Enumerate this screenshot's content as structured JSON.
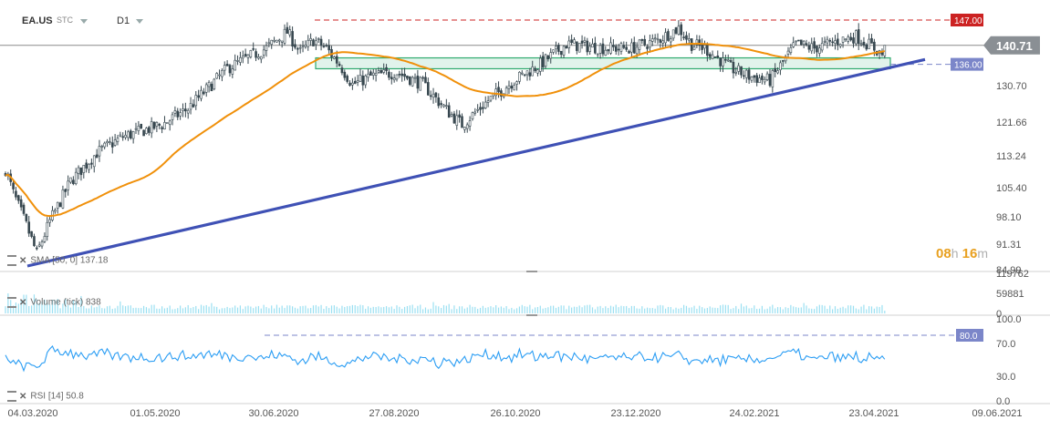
{
  "header": {
    "symbol": "EA.US",
    "sub": "STC",
    "timeframe": "D1"
  },
  "timer": {
    "hours": "08",
    "h_unit": "h",
    "minutes": "16",
    "m_unit": "m"
  },
  "labels": {
    "sma": "SMA [50, 0] 137.18",
    "volume": "Volume (tick) 838",
    "rsi": "RSI [14] 50.8"
  },
  "chart_data": [
    {
      "type": "candlestick",
      "title": "EA.US",
      "timeframe": "D1",
      "y_ticks": [
        "84.99",
        "91.31",
        "98.10",
        "105.40",
        "113.24",
        "121.66",
        "130.70",
        "136.00",
        "140.71",
        "147.00"
      ],
      "ylim": [
        84.99,
        147.0
      ],
      "x_ticks": [
        "04.03.2020",
        "01.05.2020",
        "30.06.2020",
        "27.08.2020",
        "26.10.2020",
        "23.12.2020",
        "24.02.2021",
        "23.04.2021",
        "09.06.2021"
      ],
      "last_price": 140.71,
      "resistance": 147.0,
      "support": 136.0,
      "color_up": "#ffffff",
      "color_down": "#37474f",
      "sma_color": "#f0900a",
      "trendline_color": "#3f51b5",
      "zone_color": "#2eaa6e",
      "resistance_color": "#cc2222",
      "support_label_color": "#7b86c9",
      "close_anchors": [
        [
          0,
          110
        ],
        [
          3,
          104
        ],
        [
          8,
          96
        ],
        [
          12,
          89
        ],
        [
          17,
          97
        ],
        [
          25,
          107
        ],
        [
          35,
          114
        ],
        [
          45,
          118
        ],
        [
          60,
          121
        ],
        [
          70,
          125
        ],
        [
          85,
          135
        ],
        [
          100,
          140
        ],
        [
          108,
          144
        ],
        [
          113,
          139
        ],
        [
          118,
          142
        ],
        [
          123,
          140
        ],
        [
          128,
          136
        ],
        [
          133,
          131
        ],
        [
          140,
          133
        ],
        [
          150,
          134
        ],
        [
          160,
          131
        ],
        [
          170,
          124
        ],
        [
          175,
          121
        ],
        [
          185,
          127
        ],
        [
          195,
          132
        ],
        [
          205,
          136
        ],
        [
          215,
          141
        ],
        [
          230,
          140
        ],
        [
          240,
          140
        ],
        [
          250,
          142
        ],
        [
          258,
          145
        ],
        [
          263,
          141
        ],
        [
          268,
          140
        ],
        [
          278,
          135
        ],
        [
          285,
          133
        ],
        [
          293,
          132
        ],
        [
          303,
          141
        ],
        [
          310,
          140
        ],
        [
          320,
          142
        ],
        [
          326,
          143
        ],
        [
          333,
          140
        ],
        [
          337,
          138
        ]
      ]
    },
    {
      "type": "bar",
      "title": "Volume (tick)",
      "last_value": 838,
      "y_ticks": [
        "0",
        "59881",
        "119762"
      ],
      "ylim": [
        0,
        119762
      ],
      "color": "#9be0f2"
    },
    {
      "type": "line",
      "title": "RSI [14]",
      "last_value": 50.8,
      "y_ticks": [
        "0.0",
        "30.0",
        "70.0",
        "100.0"
      ],
      "ylim": [
        0,
        100
      ],
      "level": 80.0,
      "color": "#2a9df4"
    }
  ]
}
